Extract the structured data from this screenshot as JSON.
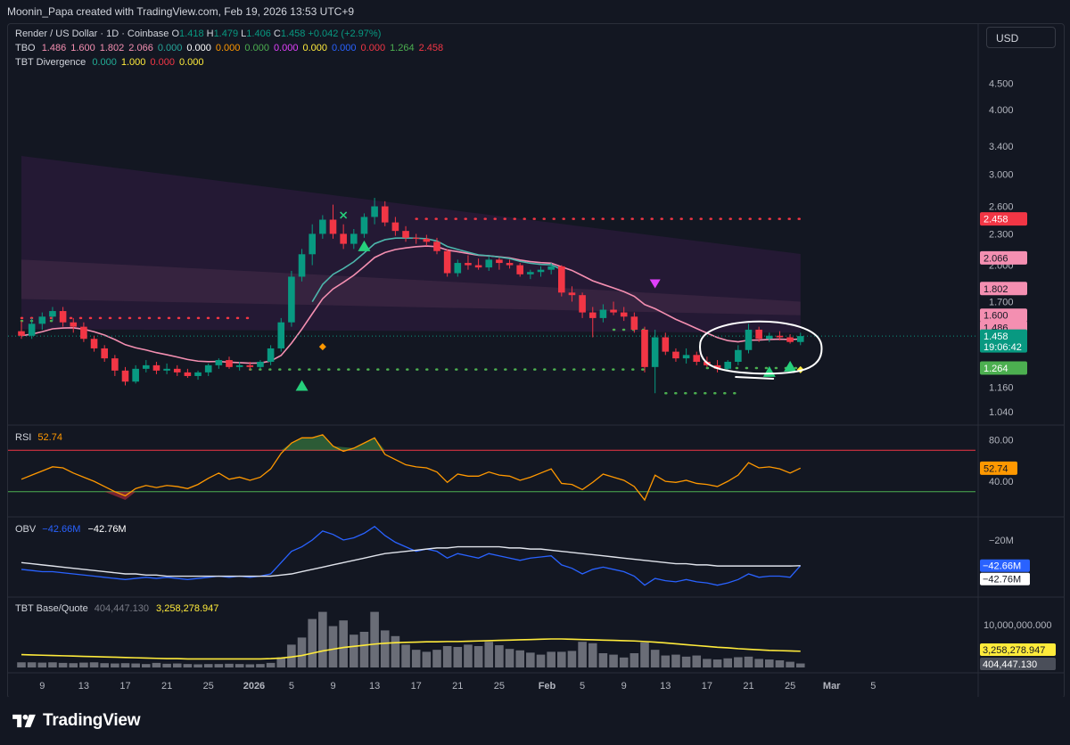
{
  "header": {
    "text": "Moonin_Papa created with TradingView.com, Feb 19, 2026 13:53 UTC+9"
  },
  "footer": {
    "brand": "TradingView"
  },
  "currency_button": "USD",
  "legend": {
    "symbol": "Render / US Dollar · 1D · Coinbase",
    "ohlc": [
      {
        "k": "O",
        "v": "1.418"
      },
      {
        "k": "H",
        "v": "1.479"
      },
      {
        "k": "L",
        "v": "1.406"
      },
      {
        "k": "C",
        "v": "1.458"
      }
    ],
    "change": "+0.042 (+2.97%)",
    "tbo": {
      "label": "TBO",
      "values": [
        {
          "v": "1.486",
          "color": "#f48fb1"
        },
        {
          "v": "1.600",
          "color": "#f48fb1"
        },
        {
          "v": "1.802",
          "color": "#f48fb1"
        },
        {
          "v": "2.066",
          "color": "#f48fb1"
        },
        {
          "v": "0.000",
          "color": "#26a69a"
        },
        {
          "v": "0.000",
          "color": "#ffffff"
        },
        {
          "v": "0.000",
          "color": "#ff9800"
        },
        {
          "v": "0.000",
          "color": "#4caf50"
        },
        {
          "v": "0.000",
          "color": "#e040fb"
        },
        {
          "v": "0.000",
          "color": "#ffeb3b"
        },
        {
          "v": "0.000",
          "color": "#2962ff"
        },
        {
          "v": "0.000",
          "color": "#f23645"
        },
        {
          "v": "1.264",
          "color": "#4caf50"
        },
        {
          "v": "2.458",
          "color": "#f23645"
        }
      ]
    },
    "divergence": {
      "label": "TBT Divergence",
      "values": [
        {
          "v": "0.000",
          "color": "#22ab94"
        },
        {
          "v": "1.000",
          "color": "#ffeb3b"
        },
        {
          "v": "0.000",
          "color": "#f23645"
        },
        {
          "v": "0.000",
          "color": "#ffeb3b"
        }
      ]
    },
    "rsi": {
      "label": "RSI",
      "value": "52.74"
    },
    "obv": {
      "label": "OBV",
      "v1": "−42.66M",
      "v2": "−42.76M"
    },
    "base_quote": {
      "label": "TBT Base/Quote",
      "v1": "404,447.130",
      "v2": "3,258,278.947"
    }
  },
  "chart_data": [
    {
      "type": "candlestick",
      "title": "Render / US Dollar · 1D · Coinbase",
      "scale": "log",
      "ylim": [
        1.0,
        5.0
      ],
      "yticks": [
        "4.500",
        "4.000",
        "3.400",
        "3.000",
        "2.600",
        "2.300",
        "2.000",
        "1.700",
        "1.160",
        "1.040"
      ],
      "xticks": [
        "9",
        "13",
        "17",
        "21",
        "25",
        "2026",
        "5",
        "9",
        "13",
        "17",
        "21",
        "25",
        "Feb",
        "5",
        "9",
        "13",
        "17",
        "21",
        "25",
        "Mar",
        "5"
      ],
      "x_start": "2025-12-07",
      "candles": [
        [
          1.49,
          1.56,
          1.44,
          1.46
        ],
        [
          1.46,
          1.58,
          1.44,
          1.54
        ],
        [
          1.54,
          1.62,
          1.5,
          1.59
        ],
        [
          1.59,
          1.66,
          1.56,
          1.63
        ],
        [
          1.63,
          1.66,
          1.52,
          1.55
        ],
        [
          1.55,
          1.58,
          1.48,
          1.52
        ],
        [
          1.52,
          1.55,
          1.42,
          1.44
        ],
        [
          1.44,
          1.46,
          1.36,
          1.38
        ],
        [
          1.38,
          1.4,
          1.3,
          1.32
        ],
        [
          1.32,
          1.34,
          1.22,
          1.25
        ],
        [
          1.25,
          1.27,
          1.17,
          1.19
        ],
        [
          1.19,
          1.28,
          1.18,
          1.26
        ],
        [
          1.26,
          1.31,
          1.24,
          1.28
        ],
        [
          1.28,
          1.3,
          1.23,
          1.25
        ],
        [
          1.25,
          1.29,
          1.23,
          1.26
        ],
        [
          1.26,
          1.28,
          1.22,
          1.24
        ],
        [
          1.24,
          1.26,
          1.21,
          1.22
        ],
        [
          1.22,
          1.25,
          1.2,
          1.24
        ],
        [
          1.24,
          1.29,
          1.22,
          1.28
        ],
        [
          1.28,
          1.32,
          1.26,
          1.31
        ],
        [
          1.31,
          1.33,
          1.26,
          1.27
        ],
        [
          1.27,
          1.3,
          1.25,
          1.28
        ],
        [
          1.28,
          1.3,
          1.25,
          1.27
        ],
        [
          1.27,
          1.31,
          1.26,
          1.3
        ],
        [
          1.3,
          1.4,
          1.28,
          1.38
        ],
        [
          1.38,
          1.58,
          1.36,
          1.55
        ],
        [
          1.55,
          1.95,
          1.52,
          1.9
        ],
        [
          1.9,
          2.15,
          1.86,
          2.1
        ],
        [
          2.1,
          2.4,
          2.0,
          2.3
        ],
        [
          2.3,
          2.5,
          2.25,
          2.45
        ],
        [
          2.45,
          2.62,
          2.25,
          2.3
        ],
        [
          2.3,
          2.4,
          2.15,
          2.2
        ],
        [
          2.2,
          2.35,
          2.15,
          2.3
        ],
        [
          2.3,
          2.52,
          2.26,
          2.48
        ],
        [
          2.48,
          2.7,
          2.4,
          2.6
        ],
        [
          2.6,
          2.66,
          2.38,
          2.42
        ],
        [
          2.42,
          2.48,
          2.28,
          2.33
        ],
        [
          2.33,
          2.38,
          2.22,
          2.26
        ],
        [
          2.26,
          2.3,
          2.2,
          2.25
        ],
        [
          2.25,
          2.29,
          2.18,
          2.22
        ],
        [
          2.22,
          2.26,
          2.1,
          2.13
        ],
        [
          2.13,
          2.15,
          1.9,
          1.93
        ],
        [
          1.93,
          2.05,
          1.9,
          2.02
        ],
        [
          2.02,
          2.09,
          1.96,
          2.0
        ],
        [
          2.0,
          2.06,
          1.96,
          1.98
        ],
        [
          1.98,
          2.08,
          1.95,
          2.05
        ],
        [
          2.05,
          2.07,
          1.96,
          2.02
        ],
        [
          2.02,
          2.05,
          1.97,
          2.0
        ],
        [
          2.0,
          2.02,
          1.9,
          1.92
        ],
        [
          1.92,
          1.96,
          1.88,
          1.94
        ],
        [
          1.94,
          1.99,
          1.9,
          1.96
        ],
        [
          1.96,
          2.02,
          1.92,
          1.99
        ],
        [
          1.99,
          2.0,
          1.74,
          1.77
        ],
        [
          1.77,
          1.82,
          1.7,
          1.75
        ],
        [
          1.75,
          1.77,
          1.58,
          1.62
        ],
        [
          1.62,
          1.66,
          1.45,
          1.58
        ],
        [
          1.58,
          1.68,
          1.55,
          1.64
        ],
        [
          1.64,
          1.7,
          1.6,
          1.62
        ],
        [
          1.62,
          1.66,
          1.56,
          1.59
        ],
        [
          1.59,
          1.62,
          1.48,
          1.5
        ],
        [
          1.5,
          1.52,
          1.24,
          1.27
        ],
        [
          1.27,
          1.5,
          1.13,
          1.45
        ],
        [
          1.45,
          1.48,
          1.34,
          1.36
        ],
        [
          1.36,
          1.38,
          1.3,
          1.32
        ],
        [
          1.32,
          1.38,
          1.29,
          1.34
        ],
        [
          1.34,
          1.36,
          1.28,
          1.3
        ],
        [
          1.3,
          1.33,
          1.27,
          1.28
        ],
        [
          1.28,
          1.31,
          1.24,
          1.26
        ],
        [
          1.26,
          1.31,
          1.25,
          1.3
        ],
        [
          1.3,
          1.4,
          1.28,
          1.37
        ],
        [
          1.37,
          1.54,
          1.35,
          1.5
        ],
        [
          1.5,
          1.52,
          1.42,
          1.44
        ],
        [
          1.44,
          1.48,
          1.42,
          1.46
        ],
        [
          1.46,
          1.49,
          1.43,
          1.45
        ],
        [
          1.45,
          1.47,
          1.41,
          1.42
        ],
        [
          1.42,
          1.48,
          1.4,
          1.458
        ]
      ],
      "levels": [
        {
          "value": "2.458",
          "color": "#f23645"
        },
        {
          "value": "2.066",
          "color": "#f48fb1"
        },
        {
          "value": "1.802",
          "color": "#f48fb1"
        },
        {
          "value": "1.600",
          "color": "#f48fb1"
        },
        {
          "value": "1.486",
          "color": "#f48fb1"
        },
        {
          "value": "1.458",
          "color": "#089981"
        },
        {
          "value": "1.264",
          "color": "#4caf50"
        }
      ],
      "countdown": "19:06:42"
    },
    {
      "type": "line",
      "title": "RSI",
      "ylim": [
        0,
        100
      ],
      "yticks": [
        "80.00",
        "40.00"
      ],
      "bands": [
        70,
        30
      ],
      "last": "52.74",
      "values": [
        42,
        46,
        50,
        54,
        53,
        48,
        44,
        40,
        35,
        30,
        26,
        33,
        36,
        34,
        36,
        35,
        33,
        37,
        43,
        48,
        42,
        44,
        41,
        44,
        52,
        67,
        77,
        82,
        82,
        85,
        74,
        69,
        72,
        77,
        82,
        66,
        61,
        56,
        54,
        53,
        49,
        39,
        47,
        45,
        45,
        49,
        46,
        45,
        41,
        44,
        48,
        52,
        38,
        37,
        32,
        39,
        47,
        44,
        41,
        35,
        22,
        46,
        40,
        39,
        41,
        38,
        37,
        35,
        40,
        46,
        58,
        53,
        54,
        52,
        48,
        52.74
      ]
    },
    {
      "type": "line",
      "title": "OBV",
      "unit": "M",
      "yticks": [
        "−20M",
        "−40M"
      ],
      "values": [
        -46,
        -47,
        -48,
        -48,
        -49,
        -50,
        -51,
        -52,
        -53,
        -54,
        -55,
        -54,
        -53,
        -54,
        -53,
        -54,
        -55,
        -54,
        -53,
        -52,
        -53,
        -52,
        -53,
        -52,
        -50,
        -40,
        -30,
        -26,
        -20,
        -12,
        -15,
        -20,
        -18,
        -14,
        -8,
        -16,
        -22,
        -26,
        -30,
        -28,
        -30,
        -36,
        -32,
        -34,
        -36,
        -32,
        -34,
        -36,
        -38,
        -36,
        -35,
        -34,
        -42,
        -45,
        -50,
        -46,
        -44,
        -46,
        -48,
        -52,
        -60,
        -54,
        -56,
        -57,
        -55,
        -57,
        -58,
        -60,
        -58,
        -55,
        -50,
        -53,
        -52,
        -52,
        -53,
        -42.66
      ],
      "ma": [
        -40,
        -41,
        -42,
        -43,
        -44,
        -45,
        -46,
        -47,
        -48,
        -49,
        -50,
        -50,
        -51,
        -51,
        -52,
        -52,
        -52,
        -52,
        -52,
        -52,
        -52,
        -52,
        -52,
        -52,
        -52,
        -51,
        -50,
        -48,
        -46,
        -44,
        -42,
        -40,
        -38,
        -36,
        -34,
        -32,
        -31,
        -30,
        -29,
        -28,
        -27,
        -27,
        -26,
        -26,
        -26,
        -26,
        -26,
        -27,
        -27,
        -28,
        -28,
        -29,
        -30,
        -31,
        -32,
        -33,
        -34,
        -35,
        -36,
        -37,
        -38,
        -39,
        -40,
        -41,
        -41,
        -42,
        -42,
        -43,
        -43,
        -43,
        -43,
        -43,
        -43,
        -43,
        -43,
        -42.76
      ],
      "last": [
        "−42.66M",
        "−42.76M"
      ]
    },
    {
      "type": "bar",
      "title": "TBT Base/Quote",
      "yticks": [
        "10,000,000.000"
      ],
      "values": [
        0.18,
        0.18,
        0.17,
        0.18,
        0.16,
        0.15,
        0.17,
        0.18,
        0.15,
        0.14,
        0.15,
        0.14,
        0.12,
        0.16,
        0.13,
        0.14,
        0.12,
        0.11,
        0.12,
        0.12,
        0.13,
        0.12,
        0.11,
        0.12,
        0.16,
        0.35,
        0.8,
        1.05,
        1.7,
        1.95,
        1.45,
        1.65,
        1.15,
        1.25,
        1.95,
        1.3,
        1.1,
        0.8,
        0.62,
        0.55,
        0.62,
        0.75,
        0.72,
        0.8,
        0.75,
        0.9,
        0.78,
        0.65,
        0.6,
        0.52,
        0.45,
        0.55,
        0.55,
        0.58,
        0.9,
        0.85,
        0.5,
        0.45,
        0.35,
        0.5,
        0.88,
        0.62,
        0.42,
        0.45,
        0.38,
        0.42,
        0.3,
        0.28,
        0.32,
        0.36,
        0.38,
        0.3,
        0.28,
        0.25,
        0.2,
        0.14
      ],
      "ma": [
        0.45,
        0.44,
        0.43,
        0.42,
        0.41,
        0.4,
        0.39,
        0.38,
        0.37,
        0.36,
        0.35,
        0.34,
        0.33,
        0.32,
        0.31,
        0.31,
        0.3,
        0.3,
        0.3,
        0.3,
        0.3,
        0.3,
        0.3,
        0.3,
        0.31,
        0.33,
        0.37,
        0.42,
        0.5,
        0.58,
        0.64,
        0.7,
        0.74,
        0.78,
        0.82,
        0.85,
        0.87,
        0.88,
        0.89,
        0.9,
        0.9,
        0.91,
        0.91,
        0.92,
        0.93,
        0.94,
        0.95,
        0.96,
        0.97,
        0.98,
        0.99,
        1.0,
        1.0,
        0.99,
        0.98,
        0.97,
        0.96,
        0.95,
        0.94,
        0.93,
        0.91,
        0.89,
        0.86,
        0.83,
        0.8,
        0.77,
        0.74,
        0.71,
        0.69,
        0.66,
        0.64,
        0.62,
        0.6,
        0.59,
        0.58,
        0.57
      ],
      "last": [
        "3,258,278.947",
        "404,447.130"
      ]
    }
  ]
}
